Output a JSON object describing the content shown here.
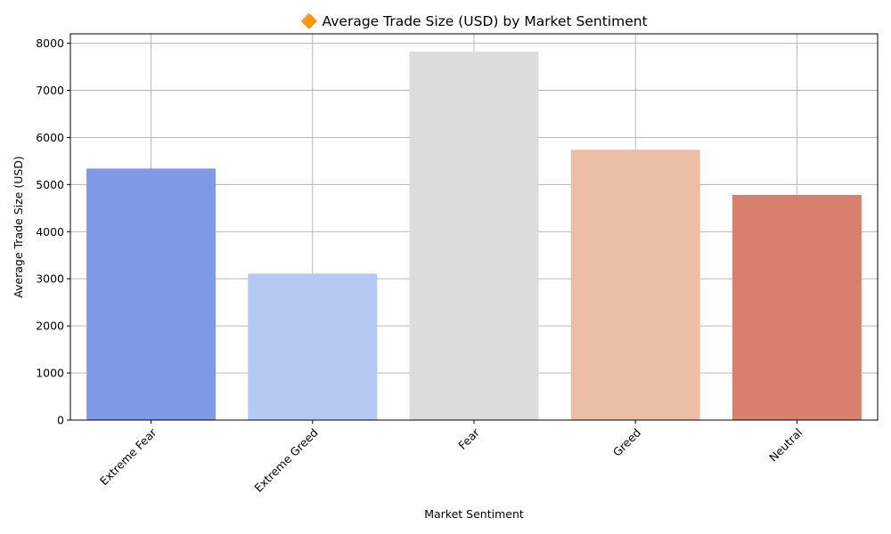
{
  "chart_data": {
    "type": "bar",
    "title": "🔶 Average Trade Size (USD) by Market Sentiment",
    "xlabel": "Market Sentiment",
    "ylabel": "Average Trade Size (USD)",
    "categories": [
      "Extreme Fear",
      "Extreme Greed",
      "Fear",
      "Greed",
      "Neutral"
    ],
    "values": [
      5340,
      3110,
      7820,
      5740,
      4780
    ],
    "colors": [
      "#8099e4",
      "#b5c9f4",
      "#dcdcdc",
      "#ecbea6",
      "#d6806d"
    ],
    "ylim": [
      0,
      8200
    ],
    "yticks": [
      0,
      1000,
      2000,
      3000,
      4000,
      5000,
      6000,
      7000,
      8000
    ],
    "grid": true,
    "xtick_rotation": 45
  }
}
